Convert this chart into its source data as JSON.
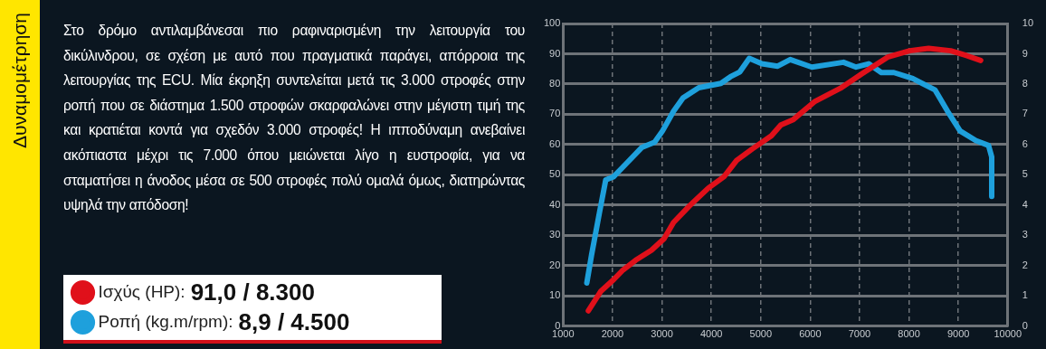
{
  "chart_data": {
    "type": "line",
    "title": "Δυναμομέτρηση",
    "annotations": [
      "Στο δρόμο αντιλαμβάνεσαι πιο ραφιναρισμένη την λειτουργία του δικύλινδρου, σε σχέση με αυτό που πραγματικά παράγει, απόρροια της λειτουργίας της ECU. Μία έκρηξη συντελείται μετά τις 3.000 στροφές στην ροπή που σε διάστημα 1.500 στροφών σκαρφαλώνει στην μέγιστη τιμή της και κρατιέται κοντά για σχεδόν 3.000 στροφές! Η ιπποδύναμη ανεβαίνει ακόπιαστα μέχρι τις 7.000 όπου μειώνεται λίγο η ευστροφία, για να σταματήσει η άνοδος μέσα σε 500 στροφές πολύ ομαλά όμως, διατηρώντας υψηλά την απόδοση!",
      "91,0 / 8.300",
      "8,9 / 4.500"
    ],
    "xlim": [
      1000,
      10000
    ],
    "xticks": [
      1000,
      2000,
      3000,
      4000,
      5000,
      6000,
      7000,
      8000,
      9000,
      10000
    ],
    "ylim": [
      0,
      100
    ],
    "yticks": [
      0,
      10,
      20,
      30,
      40,
      50,
      60,
      70,
      80,
      90,
      100
    ],
    "y2lim": [
      0,
      10
    ],
    "y2ticks": [
      0,
      1,
      2,
      3,
      4,
      5,
      6,
      7,
      8,
      9,
      10
    ],
    "grid": true,
    "legend": "left",
    "marker": "none",
    "line_style": "solid",
    "series": [
      {
        "name": "Ισχύς (HP):",
        "color": "#e0101a",
        "x": [
          1511,
          1766,
          2022,
          2213,
          2468,
          2788,
          3043,
          3235,
          3554,
          3937,
          4257,
          4512,
          4831,
          5214,
          5406,
          5661,
          6099,
          6610,
          7057,
          7568,
          8015,
          8398,
          8845,
          9164,
          9451
        ],
        "values": [
          5.1,
          11.6,
          15.4,
          18.6,
          21.8,
          25.1,
          28.9,
          34.3,
          39.7,
          45.6,
          49.4,
          54.8,
          58.6,
          62.9,
          66.5,
          68.3,
          74.3,
          78.6,
          83.5,
          88.9,
          91.0,
          91.8,
          91.0,
          89.4,
          87.8
        ]
      },
      {
        "name": "Ροπή (kg.m/rpm):",
        "color": "#1ea0dc",
        "axis": "y2",
        "x": [
          1479,
          1575,
          1735,
          1862,
          2022,
          2277,
          2596,
          2852,
          3011,
          3235,
          3427,
          3746,
          4193,
          4385,
          4576,
          4768,
          5023,
          5342,
          5597,
          6035,
          6674,
          6929,
          7185,
          7440,
          7695,
          8078,
          8525,
          8781,
          9036,
          9355,
          9611,
          9675,
          9675
        ],
        "values": [
          1.43,
          2.35,
          3.75,
          4.83,
          4.94,
          5.37,
          5.91,
          6.08,
          6.45,
          7.1,
          7.54,
          7.88,
          8.02,
          8.24,
          8.4,
          8.85,
          8.67,
          8.59,
          8.81,
          8.56,
          8.72,
          8.56,
          8.67,
          8.38,
          8.38,
          8.18,
          7.81,
          7.1,
          6.45,
          6.13,
          5.97,
          5.59,
          4.29
        ]
      }
    ]
  }
}
